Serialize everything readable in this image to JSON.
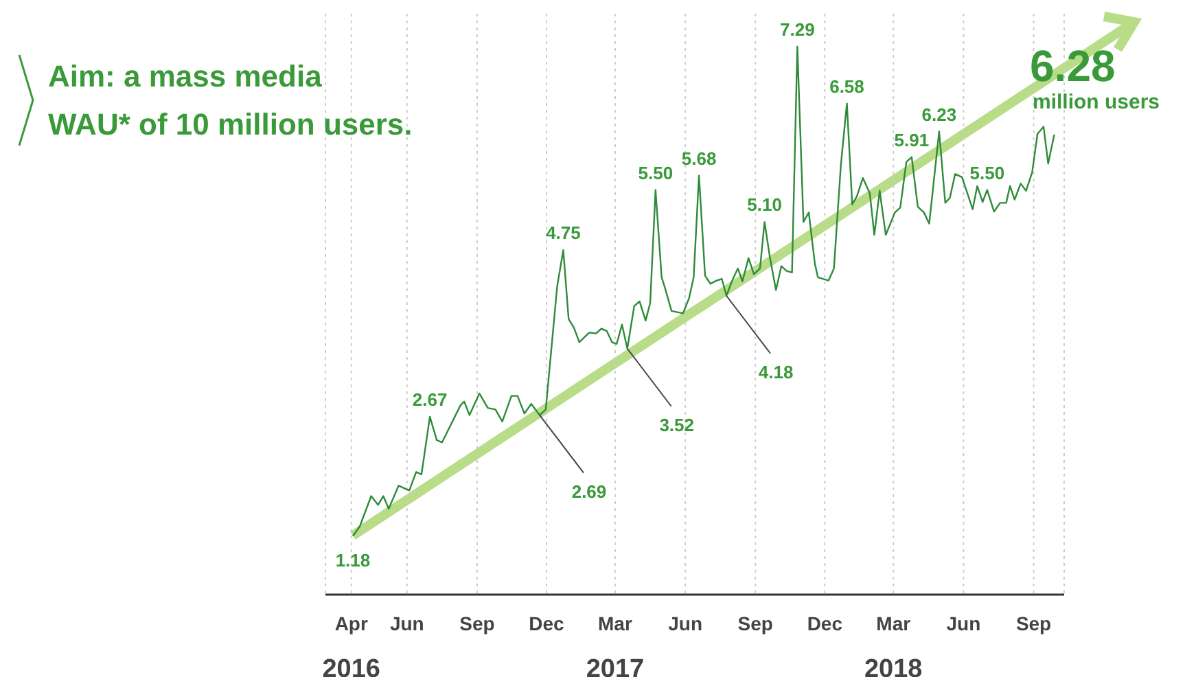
{
  "chart_data": {
    "type": "line",
    "title": "Aim: a mass media\nWAU* of 10 million users.",
    "annotations": [
      "6.28",
      "million users"
    ],
    "xlim": [
      "2016-02-29",
      "2018-10-25"
    ],
    "ylim": [
      0.45,
      7.7
    ],
    "xticks": [
      {
        "value": "2016-04-03",
        "label": "Apr\n2016"
      },
      {
        "value": "2016-06-15",
        "label": "Jun"
      },
      {
        "value": "2016-09-15",
        "label": "Sep"
      },
      {
        "value": "2016-12-15",
        "label": "Dec"
      },
      {
        "value": "2017-03-15",
        "label": "Mar\n2017"
      },
      {
        "value": "2017-06-15",
        "label": "Jun"
      },
      {
        "value": "2017-09-15",
        "label": "Sep"
      },
      {
        "value": "2017-12-15",
        "label": "Dec"
      },
      {
        "value": "2018-03-15",
        "label": "Mar\n2018"
      },
      {
        "value": "2018-06-15",
        "label": "Jun"
      },
      {
        "value": "2018-09-15",
        "label": "Sep"
      }
    ],
    "tick_labels": "x",
    "grid": "x",
    "marker": "none",
    "line_style": "solid",
    "series": [
      {
        "color": "#2e8b3a",
        "x": [
          "2016-04-05",
          "2016-04-14",
          "2016-04-29",
          "2016-05-08",
          "2016-05-15",
          "2016-05-22",
          "2016-06-04",
          "2016-06-18",
          "2016-06-27",
          "2016-07-04",
          "2016-07-15",
          "2016-07-24",
          "2016-07-31",
          "2016-08-24",
          "2016-08-29",
          "2016-09-05",
          "2016-09-18",
          "2016-09-29",
          "2016-10-09",
          "2016-10-18",
          "2016-10-30",
          "2016-11-07",
          "2016-11-16",
          "2016-11-25",
          "2016-12-06",
          "2016-12-14",
          "2016-12-29",
          "2017-01-06",
          "2017-01-13",
          "2017-01-20",
          "2017-01-27",
          "2017-02-09",
          "2017-02-18",
          "2017-02-25",
          "2017-03-04",
          "2017-03-11",
          "2017-03-17",
          "2017-03-24",
          "2017-03-31",
          "2017-04-09",
          "2017-04-16",
          "2017-04-24",
          "2017-04-30",
          "2017-05-07",
          "2017-05-15",
          "2017-05-19",
          "2017-05-28",
          "2017-06-12",
          "2017-06-20",
          "2017-06-26",
          "2017-07-03",
          "2017-07-11",
          "2017-07-18",
          "2017-07-26",
          "2017-08-02",
          "2017-08-08",
          "2017-08-16",
          "2017-08-23",
          "2017-08-29",
          "2017-09-06",
          "2017-09-13",
          "2017-09-21",
          "2017-09-27",
          "2017-10-04",
          "2017-10-12",
          "2017-10-19",
          "2017-10-26",
          "2017-11-02",
          "2017-11-09",
          "2017-11-17",
          "2017-11-24",
          "2017-12-02",
          "2017-12-06",
          "2017-12-20",
          "2017-12-27",
          "2018-01-05",
          "2018-01-13",
          "2018-01-20",
          "2018-01-26",
          "2018-02-03",
          "2018-02-12",
          "2018-02-18",
          "2018-02-25",
          "2018-03-05",
          "2018-03-17",
          "2018-03-24",
          "2018-04-01",
          "2018-04-08",
          "2018-04-16",
          "2018-04-24",
          "2018-05-01",
          "2018-05-14",
          "2018-05-22",
          "2018-05-28",
          "2018-06-04",
          "2018-06-13",
          "2018-06-27",
          "2018-07-03",
          "2018-07-10",
          "2018-07-16",
          "2018-07-25",
          "2018-08-02",
          "2018-08-10",
          "2018-08-15",
          "2018-08-21",
          "2018-08-29",
          "2018-09-05",
          "2018-09-13",
          "2018-09-20",
          "2018-09-28",
          "2018-10-04",
          "2018-10-12"
        ],
        "values": [
          1.18,
          1.3,
          1.68,
          1.57,
          1.68,
          1.52,
          1.81,
          1.75,
          1.98,
          1.95,
          2.67,
          2.38,
          2.35,
          2.81,
          2.86,
          2.69,
          2.96,
          2.78,
          2.76,
          2.61,
          2.93,
          2.93,
          2.71,
          2.83,
          2.69,
          2.76,
          4.3,
          4.75,
          3.89,
          3.78,
          3.6,
          3.72,
          3.71,
          3.77,
          3.74,
          3.6,
          3.58,
          3.82,
          3.52,
          4.05,
          4.11,
          3.87,
          4.09,
          5.5,
          4.41,
          4.29,
          3.99,
          3.96,
          4.15,
          4.41,
          5.68,
          4.43,
          4.33,
          4.37,
          4.39,
          4.18,
          4.38,
          4.52,
          4.36,
          4.65,
          4.45,
          4.52,
          5.1,
          4.66,
          4.25,
          4.55,
          4.49,
          4.47,
          7.29,
          5.1,
          5.22,
          4.58,
          4.41,
          4.37,
          4.52,
          5.8,
          6.58,
          5.32,
          5.42,
          5.65,
          5.46,
          4.94,
          5.49,
          4.94,
          5.22,
          5.28,
          5.85,
          5.91,
          5.29,
          5.22,
          5.08,
          6.23,
          5.34,
          5.4,
          5.7,
          5.66,
          5.26,
          5.55,
          5.35,
          5.5,
          5.23,
          5.34,
          5.34,
          5.55,
          5.38,
          5.58,
          5.49,
          5.72,
          6.2,
          6.29,
          5.83,
          6.19
        ],
        "value_labels": [
          "1.18",
          null,
          null,
          null,
          null,
          null,
          null,
          null,
          null,
          null,
          "2.67",
          null,
          null,
          null,
          null,
          null,
          null,
          null,
          null,
          null,
          null,
          null,
          null,
          null,
          "2.69",
          null,
          null,
          "4.75",
          null,
          null,
          null,
          null,
          null,
          null,
          null,
          null,
          null,
          null,
          "3.52",
          null,
          null,
          null,
          null,
          "5.50",
          null,
          null,
          null,
          null,
          null,
          null,
          "5.68",
          null,
          null,
          null,
          null,
          "4.18",
          null,
          null,
          null,
          null,
          null,
          null,
          "5.10",
          null,
          null,
          null,
          null,
          null,
          "7.29",
          null,
          null,
          null,
          null,
          null,
          null,
          null,
          "6.58",
          null,
          null,
          null,
          null,
          null,
          null,
          null,
          null,
          null,
          null,
          "5.91",
          null,
          null,
          null,
          "6.23",
          null,
          null,
          null,
          null,
          null,
          null,
          null,
          "5.50",
          null,
          null,
          null,
          null,
          null,
          null,
          null,
          null,
          null,
          null,
          null,
          null
        ]
      }
    ]
  }
}
